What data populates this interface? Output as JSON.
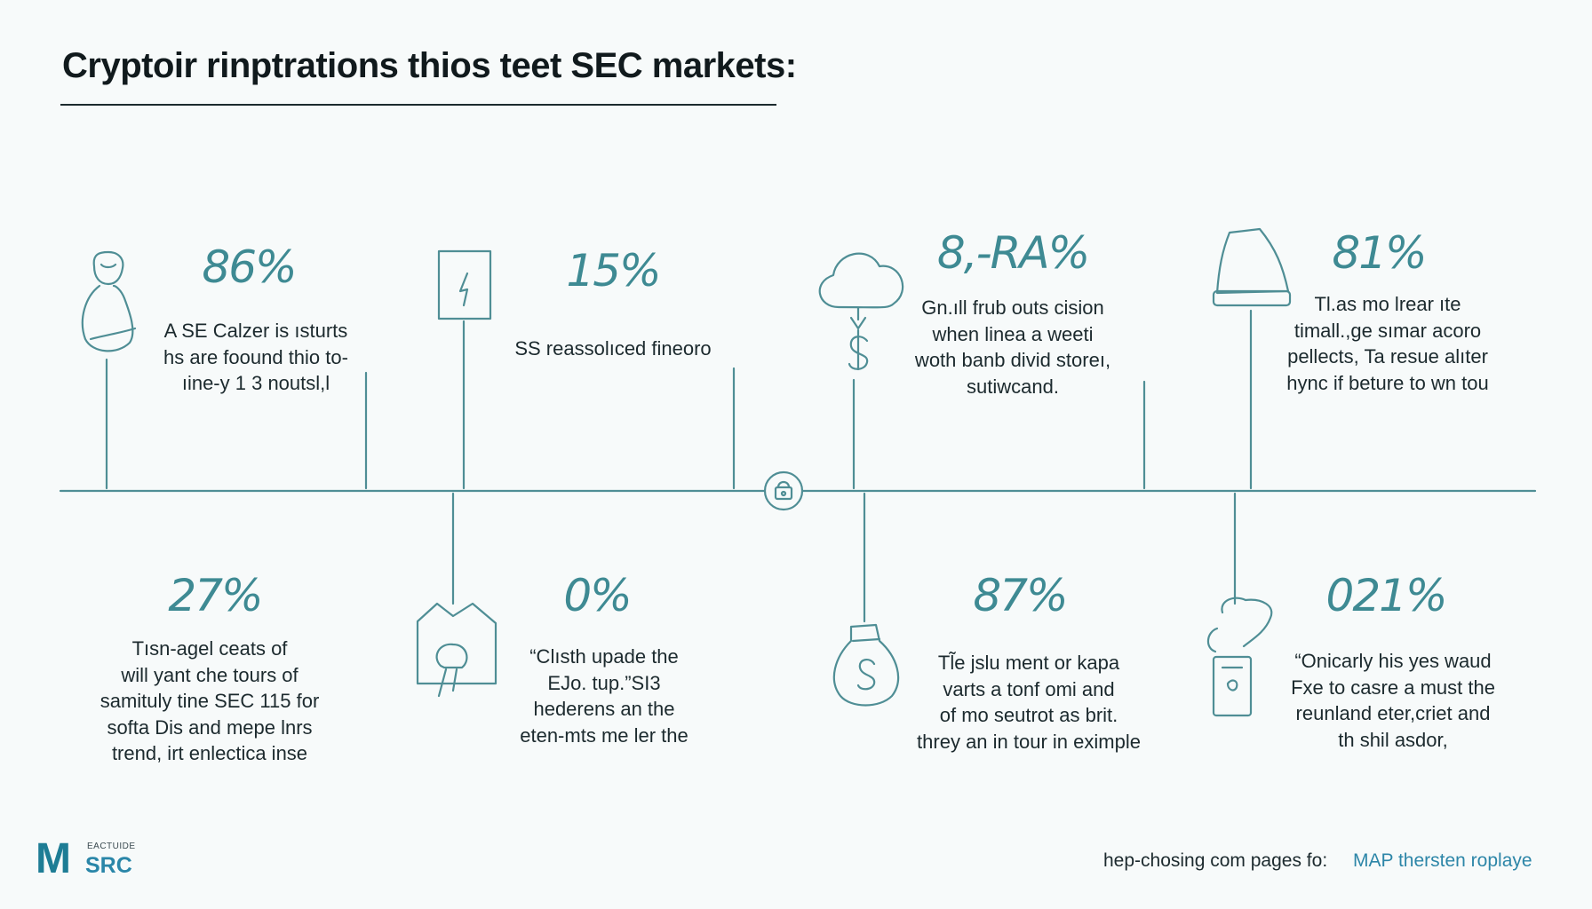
{
  "title": "Cryptoir rinptrations thios teet SEC markets:",
  "colors": {
    "accent": "#3e8a93",
    "line": "#4f8e95",
    "text": "#1c2a2e",
    "link": "#2d86a8"
  },
  "top_items": [
    {
      "icon": "person-icon",
      "percent": "86%",
      "lines": [
        "A SE Calzer is ısturts",
        "hs are foound thio to-",
        "ıine-y 1 3 noutsl,l"
      ]
    },
    {
      "icon": "device-lightning-icon",
      "percent": "15%",
      "lines": [
        "SS reassolıced fineoro"
      ]
    },
    {
      "icon": "cloud-dollar-icon",
      "percent": "8,-RA%",
      "lines": [
        "Gn.ıll frub outs cision",
        "when linea a weeti",
        "woth banb divid storeı,",
        "sutiwcand."
      ]
    },
    {
      "icon": "bell-icon",
      "percent": "81%",
      "lines": [
        "Tl.as mo lrear ıte",
        "timall.,ge sımar acoro",
        "pellects, Ta resue alıter",
        "hync if beture to wn tou"
      ]
    }
  ],
  "bottom_items": [
    {
      "icon": "",
      "percent": "27%",
      "lines": [
        "Tısn-agel ceats of",
        "will yant che tours of",
        "samituly tine SEC 115 for",
        "softa Dis and mepe lnrs",
        "trend, irt enlectica inse"
      ]
    },
    {
      "icon": "house-lightbulb-icon",
      "percent": "0%",
      "lines": [
        "“Clısth upade the",
        "EJo. tup.”SI3",
        "hederens an the",
        "eten-mts me ler the"
      ]
    },
    {
      "icon": "money-bag-icon",
      "percent": "87%",
      "lines": [
        "Tl̃e jslu ment or kapa",
        "varts a tonf omi and",
        "of mo seutrot as brit.",
        "threy an in tour in eximple"
      ]
    },
    {
      "icon": "hand-glove-icon",
      "percent": "021%",
      "lines": [
        "“Onicarly his yes waud",
        "Fxe to casre a must the",
        "reunland eter,criet and",
        "th shil asdor,"
      ]
    }
  ],
  "center_icon": "lock-icon",
  "footer": {
    "logo_mark": "M",
    "logo_small": "EACTUIDE",
    "logo_name": "SRC",
    "text": "hep-chosing com pages fo:",
    "link": "MAP thersten roplaye"
  }
}
